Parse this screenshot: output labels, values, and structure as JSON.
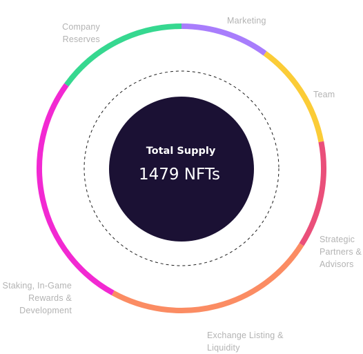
{
  "chart_data": {
    "type": "pie",
    "center": {
      "title": "Total Supply",
      "value": "1479 NFTs"
    },
    "slices": [
      {
        "label": "Marketing",
        "percent": 10,
        "color": "#a87dfc"
      },
      {
        "label": "Team",
        "percent": 12,
        "color": "#fbcc37"
      },
      {
        "label": "Strategic\nPartners &\nAdvisors",
        "percent": 12,
        "color": "#ea4f7a"
      },
      {
        "label": "Exchange Listing &\nLiquidity",
        "percent": 24,
        "color": "#fb8c63"
      },
      {
        "label": "Staking, In-Game\nRewards &\nDevelopment",
        "percent": 27,
        "color": "#f229d2"
      },
      {
        "label": "Company\nReserves",
        "percent": 15,
        "color": "#36d890"
      }
    ]
  },
  "colors": {
    "center_fill": "#1b1134",
    "dashed_ring": "#1a1a1a",
    "label_text": "#b3b3b3"
  }
}
